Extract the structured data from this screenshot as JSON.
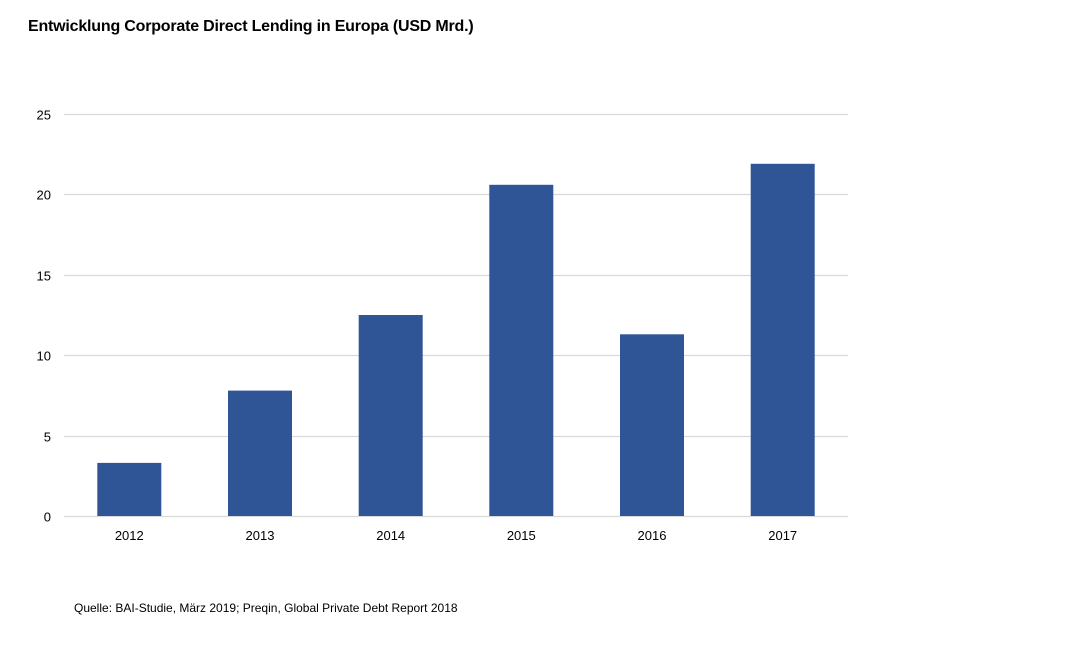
{
  "chart_data": {
    "type": "bar",
    "title": "Entwicklung Corporate Direct Lending in Europa (USD Mrd.)",
    "categories": [
      "2012",
      "2013",
      "2014",
      "2015",
      "2016",
      "2017"
    ],
    "values": [
      3.3,
      7.8,
      12.5,
      20.6,
      11.3,
      21.9
    ],
    "ylim": [
      0,
      25
    ],
    "yticks": [
      "0",
      "5",
      "10",
      "15",
      "20",
      "25"
    ],
    "xlabel": "",
    "ylabel": "",
    "grid": true,
    "legend": "none",
    "bar_color": "#2F5597",
    "grid_color": "#D9D9D9"
  },
  "source": "Quelle: BAI-Studie, März 2019; Preqin, Global Private Debt Report 2018"
}
